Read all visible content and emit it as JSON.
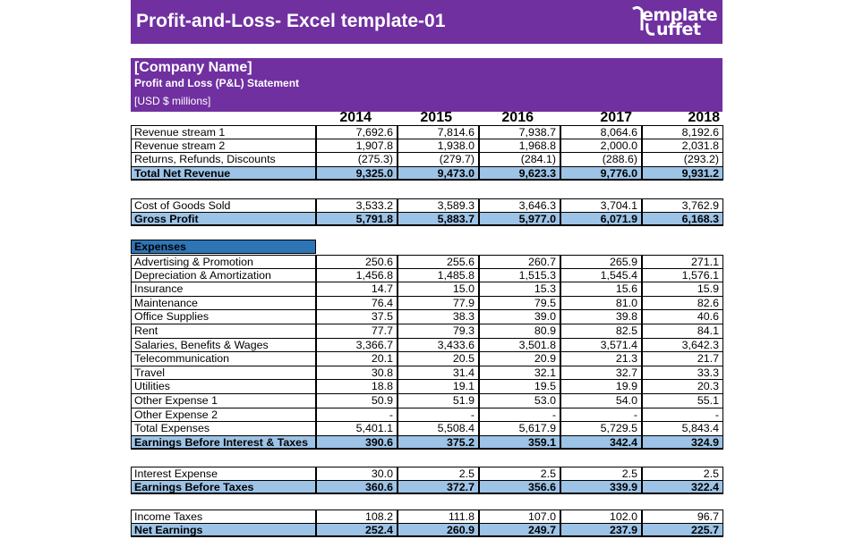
{
  "title": "Profit-and-Loss- Excel template-01",
  "logo": {
    "line1": "emplate",
    "line2": "uffet",
    "icon": "template-buffet-logo"
  },
  "header": {
    "company": "[Company Name]",
    "subtitle": "Profit and Loss (P&L) Statement",
    "units": "[USD $ millions]"
  },
  "years": [
    "2014",
    "2015",
    "2016",
    "2017",
    "2018"
  ],
  "colors": {
    "purple": "#7030a0",
    "total_fill": "#9dc3e6",
    "section_fill": "#2e75b6"
  },
  "rows": [
    {
      "label": "Revenue stream 1",
      "values": [
        "7,692.6",
        "7,814.6",
        "7,938.7",
        "8,064.6",
        "8,192.6"
      ]
    },
    {
      "label": "Revenue stream 2",
      "values": [
        "1,907.8",
        "1,938.0",
        "1,968.8",
        "2,000.0",
        "2,031.8"
      ]
    },
    {
      "label": "Returns, Refunds, Discounts",
      "values": [
        "(275.3)",
        "(279.7)",
        "(284.1)",
        "(288.6)",
        "(293.2)"
      ]
    },
    {
      "label": "Total Net Revenue",
      "values": [
        "9,325.0",
        "9,473.0",
        "9,623.3",
        "9,776.0",
        "9,931.2"
      ]
    },
    {
      "label": "Cost of Goods Sold",
      "values": [
        "3,533.2",
        "3,589.3",
        "3,646.3",
        "3,704.1",
        "3,762.9"
      ]
    },
    {
      "label": "Gross Profit",
      "values": [
        "5,791.8",
        "5,883.7",
        "5,977.0",
        "6,071.9",
        "6,168.3"
      ]
    },
    {
      "label": "Expenses",
      "values": []
    },
    {
      "label": "Advertising & Promotion",
      "values": [
        "250.6",
        "255.6",
        "260.7",
        "265.9",
        "271.1"
      ]
    },
    {
      "label": "Depreciation & Amortization",
      "values": [
        "1,456.8",
        "1,485.8",
        "1,515.3",
        "1,545.4",
        "1,576.1"
      ]
    },
    {
      "label": "Insurance",
      "values": [
        "14.7",
        "15.0",
        "15.3",
        "15.6",
        "15.9"
      ]
    },
    {
      "label": "Maintenance",
      "values": [
        "76.4",
        "77.9",
        "79.5",
        "81.0",
        "82.6"
      ]
    },
    {
      "label": "Office Supplies",
      "values": [
        "37.5",
        "38.3",
        "39.0",
        "39.8",
        "40.6"
      ]
    },
    {
      "label": "Rent",
      "values": [
        "77.7",
        "79.3",
        "80.9",
        "82.5",
        "84.1"
      ]
    },
    {
      "label": "Salaries, Benefits & Wages",
      "values": [
        "3,366.7",
        "3,433.6",
        "3,501.8",
        "3,571.4",
        "3,642.3"
      ]
    },
    {
      "label": "Telecommunication",
      "values": [
        "20.1",
        "20.5",
        "20.9",
        "21.3",
        "21.7"
      ]
    },
    {
      "label": "Travel",
      "values": [
        "30.8",
        "31.4",
        "32.1",
        "32.7",
        "33.3"
      ]
    },
    {
      "label": "Utilities",
      "values": [
        "18.8",
        "19.1",
        "19.5",
        "19.9",
        "20.3"
      ]
    },
    {
      "label": "Other Expense 1",
      "values": [
        "50.9",
        "51.9",
        "53.0",
        "54.0",
        "55.1"
      ]
    },
    {
      "label": "Other Expense 2",
      "values": [
        "-",
        "-",
        "-",
        "-",
        "-"
      ]
    },
    {
      "label": "Total Expenses",
      "values": [
        "5,401.1",
        "5,508.4",
        "5,617.9",
        "5,729.5",
        "5,843.4"
      ]
    },
    {
      "label": "Earnings Before Interest & Taxes",
      "values": [
        "390.6",
        "375.2",
        "359.1",
        "342.4",
        "324.9"
      ]
    },
    {
      "label": "Interest Expense",
      "values": [
        "30.0",
        "2.5",
        "2.5",
        "2.5",
        "2.5"
      ]
    },
    {
      "label": "Earnings Before Taxes",
      "values": [
        "360.6",
        "372.7",
        "356.6",
        "339.9",
        "322.4"
      ]
    },
    {
      "label": "Income Taxes",
      "values": [
        "108.2",
        "111.8",
        "107.0",
        "102.0",
        "96.7"
      ]
    },
    {
      "label": "Net Earnings",
      "values": [
        "252.4",
        "260.9",
        "249.7",
        "237.9",
        "225.7"
      ]
    }
  ]
}
